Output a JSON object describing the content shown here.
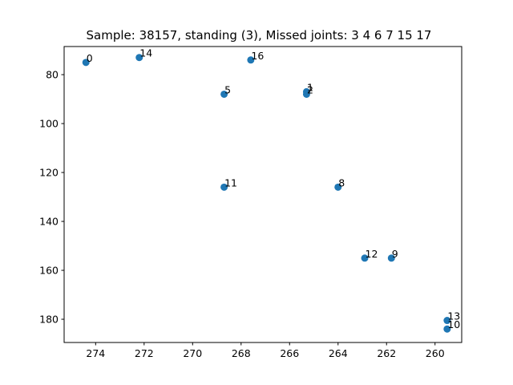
{
  "chart_data": {
    "type": "scatter",
    "title": "Sample: 38157, standing (3), Missed joints: 3  4  6  7  15  17",
    "xlabel": "",
    "ylabel": "",
    "xlim": [
      275.3,
      258.9
    ],
    "ylim": [
      189.5,
      68.5
    ],
    "x_inverted": true,
    "y_inverted": true,
    "x_ticks": [
      274,
      272,
      270,
      268,
      266,
      264,
      262,
      260
    ],
    "y_ticks": [
      80,
      100,
      120,
      140,
      160,
      180
    ],
    "point_color": "#1f77b4",
    "points": [
      {
        "label": "0",
        "x": 274.4,
        "y": 75
      },
      {
        "label": "14",
        "x": 272.2,
        "y": 73
      },
      {
        "label": "16",
        "x": 267.6,
        "y": 74
      },
      {
        "label": "5",
        "x": 268.7,
        "y": 88
      },
      {
        "label": "1",
        "x": 265.3,
        "y": 87
      },
      {
        "label": "2",
        "x": 265.3,
        "y": 88
      },
      {
        "label": "11",
        "x": 268.7,
        "y": 126
      },
      {
        "label": "8",
        "x": 264.0,
        "y": 126
      },
      {
        "label": "12",
        "x": 262.9,
        "y": 155
      },
      {
        "label": "9",
        "x": 261.8,
        "y": 155
      },
      {
        "label": "13",
        "x": 259.5,
        "y": 180.5
      },
      {
        "label": "10",
        "x": 259.5,
        "y": 184
      }
    ]
  }
}
